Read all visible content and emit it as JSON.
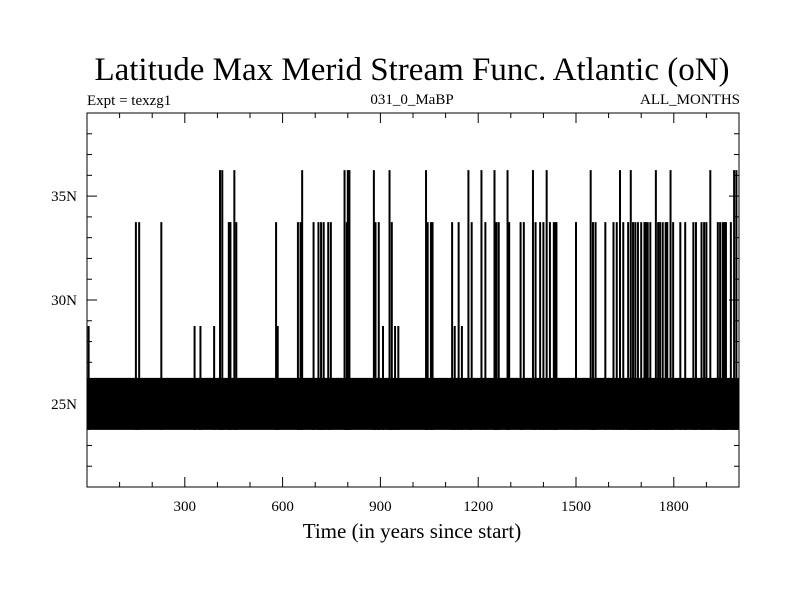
{
  "chart_data": {
    "type": "line",
    "title": "Latitude Max Merid Stream Func. Atlantic (oN)",
    "subtitle_left": "Expt = texzg1",
    "subtitle_center": "031_0_MaBP",
    "subtitle_right": "ALL_MONTHS",
    "xlabel": "Time (in years since start)",
    "ylabel": "",
    "xlim": [
      0,
      2000
    ],
    "ylim": [
      21,
      39
    ],
    "x_ticks": [
      300,
      600,
      900,
      1200,
      1500,
      1800
    ],
    "x_tick_labels": [
      "300",
      "600",
      "900",
      "1200",
      "1500",
      "1800"
    ],
    "y_ticks": [
      25,
      30,
      35
    ],
    "y_tick_labels": [
      "25N",
      "30N",
      "35N"
    ],
    "grid": false,
    "line_color": "#000000",
    "series": [
      {
        "baseline_band": [
          23.75,
          26.25
        ],
        "spike_years": [
          5,
          150,
          160,
          228,
          330,
          348,
          390,
          408,
          415,
          435,
          440,
          452,
          458,
          580,
          585,
          647,
          655,
          660,
          695,
          710,
          718,
          726,
          740,
          748,
          790,
          797,
          800,
          805,
          880,
          885,
          895,
          908,
          928,
          935,
          945,
          955,
          1040,
          1045,
          1055,
          1060,
          1120,
          1128,
          1140,
          1150,
          1170,
          1180,
          1210,
          1222,
          1250,
          1256,
          1263,
          1290,
          1295,
          1330,
          1340,
          1368,
          1376,
          1390,
          1400,
          1410,
          1420,
          1432,
          1436,
          1440,
          1500,
          1545,
          1552,
          1560,
          1590,
          1615,
          1625,
          1635,
          1645,
          1660,
          1668,
          1675,
          1682,
          1690,
          1700,
          1710,
          1715,
          1720,
          1728,
          1745,
          1752,
          1758,
          1766,
          1775,
          1780,
          1790,
          1798,
          1820,
          1835,
          1860,
          1868,
          1885,
          1893,
          1900,
          1912,
          1935,
          1942,
          1950,
          1955,
          1960,
          1975,
          1985,
          1992
        ],
        "spike_values": [
          28.75,
          33.75,
          33.75,
          33.75,
          28.75,
          28.75,
          28.75,
          36.25,
          36.25,
          33.75,
          33.75,
          36.25,
          33.75,
          33.75,
          28.75,
          33.75,
          33.75,
          36.25,
          33.75,
          33.75,
          33.75,
          33.75,
          33.75,
          33.75,
          36.25,
          33.75,
          36.25,
          36.25,
          36.25,
          33.75,
          33.75,
          28.75,
          36.25,
          33.75,
          28.75,
          28.75,
          36.25,
          33.75,
          33.75,
          33.75,
          33.75,
          28.75,
          33.75,
          28.75,
          36.25,
          33.75,
          36.25,
          33.75,
          36.25,
          33.75,
          33.75,
          36.25,
          33.75,
          33.75,
          33.75,
          36.25,
          33.75,
          33.75,
          33.75,
          36.25,
          33.75,
          33.75,
          33.75,
          33.75,
          33.75,
          36.25,
          33.75,
          33.75,
          33.75,
          33.75,
          33.75,
          36.25,
          33.75,
          33.75,
          36.25,
          33.75,
          33.75,
          33.75,
          33.75,
          33.75,
          33.75,
          33.75,
          33.75,
          36.25,
          33.75,
          33.75,
          33.75,
          33.75,
          33.75,
          36.25,
          33.75,
          33.75,
          33.75,
          33.75,
          33.75,
          33.75,
          33.75,
          33.75,
          36.25,
          33.75,
          33.75,
          33.75,
          33.75,
          33.75,
          33.75,
          36.25,
          36.25
        ]
      }
    ]
  }
}
